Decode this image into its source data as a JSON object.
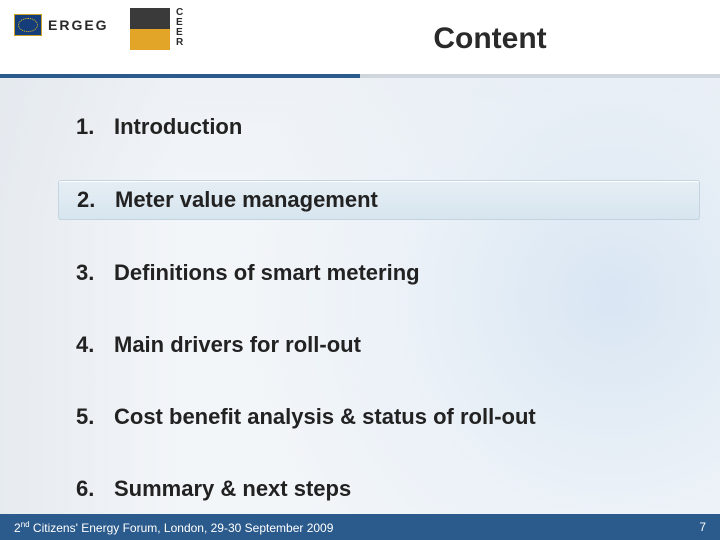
{
  "colors": {
    "header_border_left": "#2b5a8c",
    "header_border_right": "#cfd6dd",
    "footer_bg": "#2b5a8c",
    "footer_text": "#ffffff",
    "highlight_bg_top": "#e6eef4",
    "highlight_bg_bottom": "#d7e5ef",
    "highlight_border": "#c3d3df",
    "text": "#222222",
    "eu_flag_bg": "#153d7a",
    "eu_flag_stars": "#f2c21a",
    "swatch_top": "#3a3a3a",
    "swatch_bottom": "#e2a528"
  },
  "header": {
    "ergeg_label": "ERGEG",
    "ceer_letters": [
      "C",
      "E",
      "E",
      "R"
    ],
    "title": "Content"
  },
  "content": {
    "highlight_index": 1,
    "items": [
      {
        "n": "1.",
        "text": "Introduction"
      },
      {
        "n": "2.",
        "text": "Meter value management"
      },
      {
        "n": "3.",
        "text": "Definitions of smart metering"
      },
      {
        "n": "4.",
        "text": "Main drivers for roll-out"
      },
      {
        "n": "5.",
        "text": "Cost benefit analysis & status of roll-out"
      },
      {
        "n": "6.",
        "text": "Summary & next steps"
      }
    ]
  },
  "footer": {
    "ord_sup": "nd",
    "left_prefix": "2",
    "left_rest": " Citizens' Energy Forum, London, 29-30 September 2009",
    "page": "7"
  }
}
